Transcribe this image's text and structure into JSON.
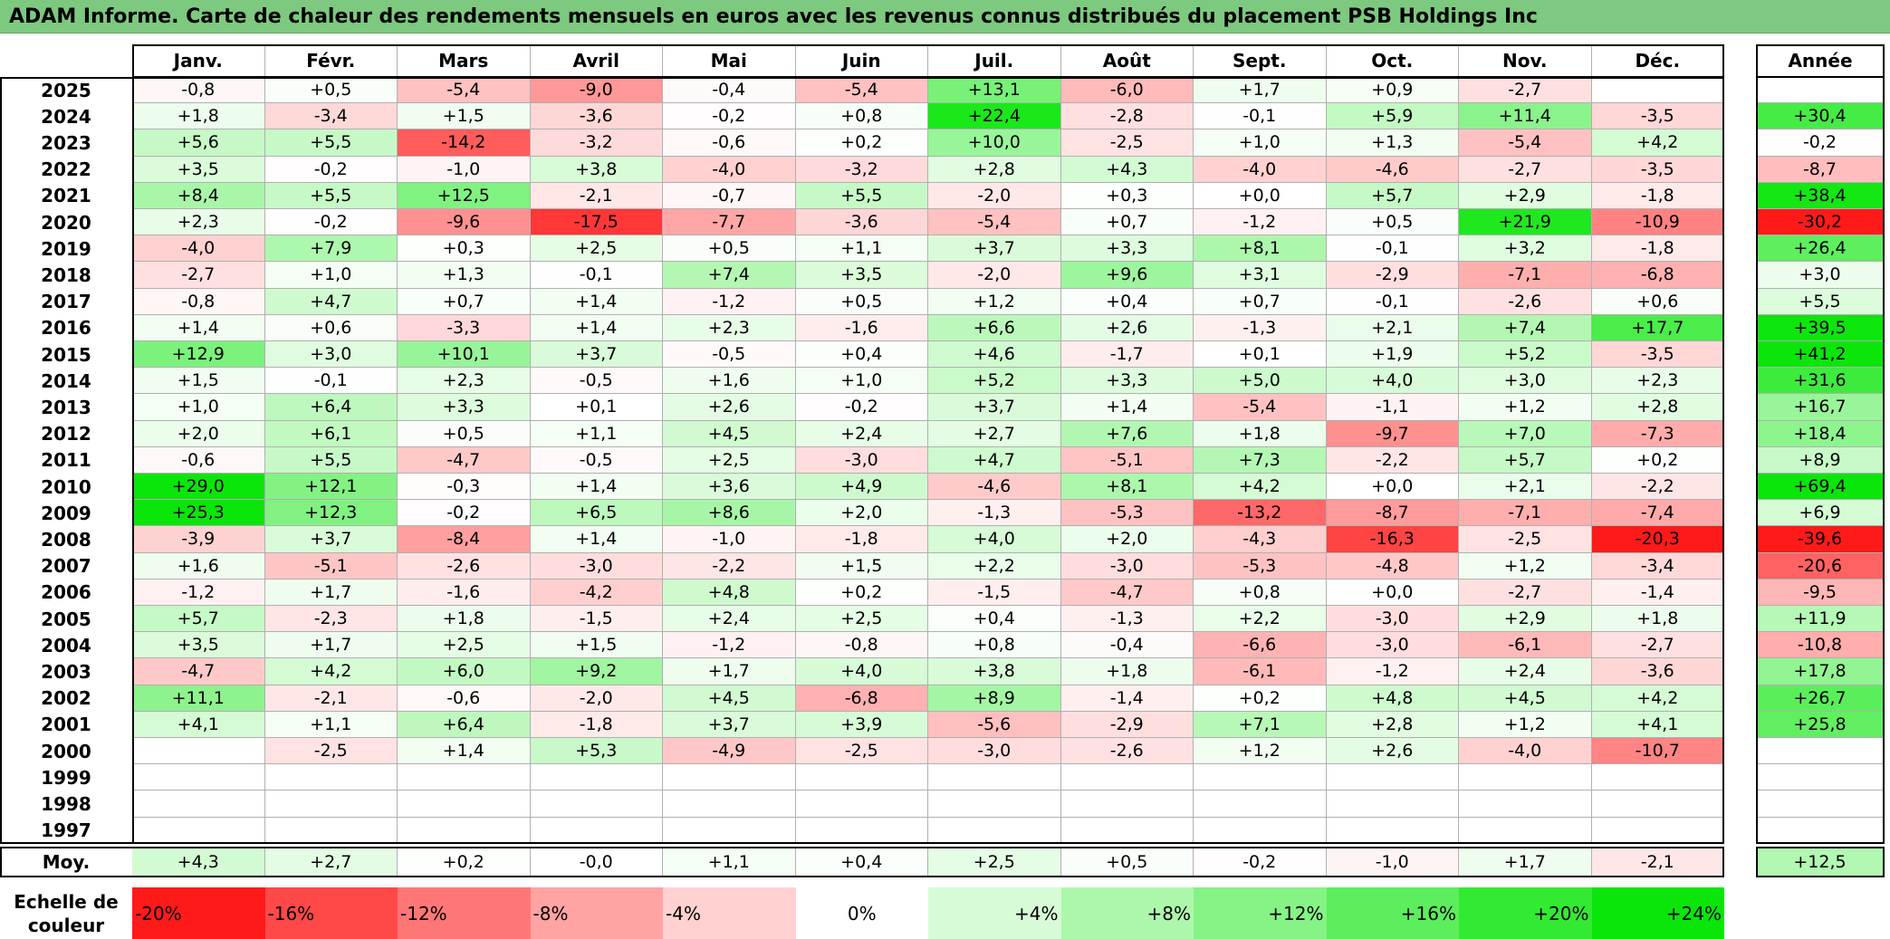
{
  "title": "ADAM Informe. Carte de chaleur des rendements mensuels en euros avec les revenus connus distribués du placement PSB Holdings Inc",
  "chart_data": {
    "type": "heatmap",
    "title": "ADAM Informe. Carte de chaleur des rendements mensuels en euros avec les revenus connus distribués du placement PSB Holdings Inc",
    "columns": [
      "Janv.",
      "Févr.",
      "Mars",
      "Avril",
      "Mai",
      "Juin",
      "Juil.",
      "Août",
      "Sept.",
      "Oct.",
      "Nov.",
      "Déc."
    ],
    "year_header": "Année",
    "rows": [
      {
        "year": "2025",
        "values": [
          "-0,8",
          "+0,5",
          "-5,4",
          "-9,0",
          "-0,4",
          "-5,4",
          "+13,1",
          "-6,0",
          "+1,7",
          "+0,9",
          "-2,7",
          ""
        ],
        "annual": ""
      },
      {
        "year": "2024",
        "values": [
          "+1,8",
          "-3,4",
          "+1,5",
          "-3,6",
          "-0,2",
          "+0,8",
          "+22,4",
          "-2,8",
          "-0,1",
          "+5,9",
          "+11,4",
          "-3,5"
        ],
        "annual": "+30,4"
      },
      {
        "year": "2023",
        "values": [
          "+5,6",
          "+5,5",
          "-14,2",
          "-3,2",
          "-0,6",
          "+0,2",
          "+10,0",
          "-2,5",
          "+1,0",
          "+1,3",
          "-5,4",
          "+4,2"
        ],
        "annual": "-0,2"
      },
      {
        "year": "2022",
        "values": [
          "+3,5",
          "-0,2",
          "-1,0",
          "+3,8",
          "-4,0",
          "-3,2",
          "+2,8",
          "+4,3",
          "-4,0",
          "-4,6",
          "-2,7",
          "-3,5"
        ],
        "annual": "-8,7"
      },
      {
        "year": "2021",
        "values": [
          "+8,4",
          "+5,5",
          "+12,5",
          "-2,1",
          "-0,7",
          "+5,5",
          "-2,0",
          "+0,3",
          "+0,0",
          "+5,7",
          "+2,9",
          "-1,8"
        ],
        "annual": "+38,4"
      },
      {
        "year": "2020",
        "values": [
          "+2,3",
          "-0,2",
          "-9,6",
          "-17,5",
          "-7,7",
          "-3,6",
          "-5,4",
          "+0,7",
          "-1,2",
          "+0,5",
          "+21,9",
          "-10,9"
        ],
        "annual": "-30,2"
      },
      {
        "year": "2019",
        "values": [
          "-4,0",
          "+7,9",
          "+0,3",
          "+2,5",
          "+0,5",
          "+1,1",
          "+3,7",
          "+3,3",
          "+8,1",
          "-0,1",
          "+3,2",
          "-1,8"
        ],
        "annual": "+26,4"
      },
      {
        "year": "2018",
        "values": [
          "-2,7",
          "+1,0",
          "+1,3",
          "-0,1",
          "+7,4",
          "+3,5",
          "-2,0",
          "+9,6",
          "+3,1",
          "-2,9",
          "-7,1",
          "-6,8"
        ],
        "annual": "+3,0"
      },
      {
        "year": "2017",
        "values": [
          "-0,8",
          "+4,7",
          "+0,7",
          "+1,4",
          "-1,2",
          "+0,5",
          "+1,2",
          "+0,4",
          "+0,7",
          "-0,1",
          "-2,6",
          "+0,6"
        ],
        "annual": "+5,5"
      },
      {
        "year": "2016",
        "values": [
          "+1,4",
          "+0,6",
          "-3,3",
          "+1,4",
          "+2,3",
          "-1,6",
          "+6,6",
          "+2,6",
          "-1,3",
          "+2,1",
          "+7,4",
          "+17,7"
        ],
        "annual": "+39,5"
      },
      {
        "year": "2015",
        "values": [
          "+12,9",
          "+3,0",
          "+10,1",
          "+3,7",
          "-0,5",
          "+0,4",
          "+4,6",
          "-1,7",
          "+0,1",
          "+1,9",
          "+5,2",
          "-3,5"
        ],
        "annual": "+41,2"
      },
      {
        "year": "2014",
        "values": [
          "+1,5",
          "-0,1",
          "+2,3",
          "-0,5",
          "+1,6",
          "+1,0",
          "+5,2",
          "+3,3",
          "+5,0",
          "+4,0",
          "+3,0",
          "+2,3"
        ],
        "annual": "+31,6"
      },
      {
        "year": "2013",
        "values": [
          "+1,0",
          "+6,4",
          "+3,3",
          "+0,1",
          "+2,6",
          "-0,2",
          "+3,7",
          "+1,4",
          "-5,4",
          "-1,1",
          "+1,2",
          "+2,8"
        ],
        "annual": "+16,7"
      },
      {
        "year": "2012",
        "values": [
          "+2,0",
          "+6,1",
          "+0,5",
          "+1,1",
          "+4,5",
          "+2,4",
          "+2,7",
          "+7,6",
          "+1,8",
          "-9,7",
          "+7,0",
          "-7,3"
        ],
        "annual": "+18,4"
      },
      {
        "year": "2011",
        "values": [
          "-0,6",
          "+5,5",
          "-4,7",
          "-0,5",
          "+2,5",
          "-3,0",
          "+4,7",
          "-5,1",
          "+7,3",
          "-2,2",
          "+5,7",
          "+0,2"
        ],
        "annual": "+8,9"
      },
      {
        "year": "2010",
        "values": [
          "+29,0",
          "+12,1",
          "-0,3",
          "+1,4",
          "+3,6",
          "+4,9",
          "-4,6",
          "+8,1",
          "+4,2",
          "+0,0",
          "+2,1",
          "-2,2"
        ],
        "annual": "+69,4"
      },
      {
        "year": "2009",
        "values": [
          "+25,3",
          "+12,3",
          "-0,2",
          "+6,5",
          "+8,6",
          "+2,0",
          "-1,3",
          "-5,3",
          "-13,2",
          "-8,7",
          "-7,1",
          "-7,4"
        ],
        "annual": "+6,9"
      },
      {
        "year": "2008",
        "values": [
          "-3,9",
          "+3,7",
          "-8,4",
          "+1,4",
          "-1,0",
          "-1,8",
          "+4,0",
          "+2,0",
          "-4,3",
          "-16,3",
          "-2,5",
          "-20,3"
        ],
        "annual": "-39,6"
      },
      {
        "year": "2007",
        "values": [
          "+1,6",
          "-5,1",
          "-2,6",
          "-3,0",
          "-2,2",
          "+1,5",
          "+2,2",
          "-3,0",
          "-5,3",
          "-4,8",
          "+1,2",
          "-3,4"
        ],
        "annual": "-20,6"
      },
      {
        "year": "2006",
        "values": [
          "-1,2",
          "+1,7",
          "-1,6",
          "-4,2",
          "+4,8",
          "+0,2",
          "-1,5",
          "-4,7",
          "+0,8",
          "+0,0",
          "-2,7",
          "-1,4"
        ],
        "annual": "-9,5"
      },
      {
        "year": "2005",
        "values": [
          "+5,7",
          "-2,3",
          "+1,8",
          "-1,5",
          "+2,4",
          "+2,5",
          "+0,4",
          "-1,3",
          "+2,2",
          "-3,0",
          "+2,9",
          "+1,8"
        ],
        "annual": "+11,9"
      },
      {
        "year": "2004",
        "values": [
          "+3,5",
          "+1,7",
          "+2,5",
          "+1,5",
          "-1,2",
          "-0,8",
          "+0,8",
          "-0,4",
          "-6,6",
          "-3,0",
          "-6,1",
          "-2,7"
        ],
        "annual": "-10,8"
      },
      {
        "year": "2003",
        "values": [
          "-4,7",
          "+4,2",
          "+6,0",
          "+9,2",
          "+1,7",
          "+4,0",
          "+3,8",
          "+1,8",
          "-6,1",
          "-1,2",
          "+2,4",
          "-3,6"
        ],
        "annual": "+17,8"
      },
      {
        "year": "2002",
        "values": [
          "+11,1",
          "-2,1",
          "-0,6",
          "-2,0",
          "+4,5",
          "-6,8",
          "+8,9",
          "-1,4",
          "+0,2",
          "+4,8",
          "+4,5",
          "+4,2"
        ],
        "annual": "+26,7"
      },
      {
        "year": "2001",
        "values": [
          "+4,1",
          "+1,1",
          "+6,4",
          "-1,8",
          "+3,7",
          "+3,9",
          "-5,6",
          "-2,9",
          "+7,1",
          "+2,8",
          "+1,2",
          "+4,1"
        ],
        "annual": "+25,8"
      },
      {
        "year": "2000",
        "values": [
          "",
          "-2,5",
          "+1,4",
          "+5,3",
          "-4,9",
          "-2,5",
          "-3,0",
          "-2,6",
          "+1,2",
          "+2,6",
          "-4,0",
          "-10,7"
        ],
        "annual": ""
      },
      {
        "year": "1999",
        "values": [
          "",
          "",
          "",
          "",
          "",
          "",
          "",
          "",
          "",
          "",
          "",
          ""
        ],
        "annual": ""
      },
      {
        "year": "1998",
        "values": [
          "",
          "",
          "",
          "",
          "",
          "",
          "",
          "",
          "",
          "",
          "",
          ""
        ],
        "annual": ""
      },
      {
        "year": "1997",
        "values": [
          "",
          "",
          "",
          "",
          "",
          "",
          "",
          "",
          "",
          "",
          "",
          ""
        ],
        "annual": ""
      }
    ],
    "average": {
      "label": "Moy.",
      "values": [
        "+4,3",
        "+2,7",
        "+0,2",
        "-0,0",
        "+1,1",
        "+0,4",
        "+2,5",
        "+0,5",
        "-0,2",
        "-1,0",
        "+1,7",
        "-2,1"
      ],
      "annual": "+12,5"
    },
    "scale": {
      "label_line1": "Echelle de",
      "label_line2": "couleur",
      "stops": [
        "-20%",
        "-16%",
        "-12%",
        "-8%",
        "-4%",
        "0%",
        "+4%",
        "+8%",
        "+12%",
        "+16%",
        "+20%",
        "+24%"
      ]
    },
    "colors": {
      "negative_max": "#ff1a1a",
      "neutral": "#ffffff",
      "positive_max": "#0ae60a",
      "title_bar": "#7dc97f"
    }
  }
}
